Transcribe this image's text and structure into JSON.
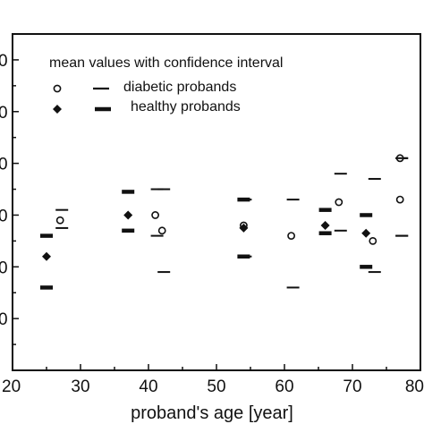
{
  "chart_data": {
    "type": "scatter",
    "xlabel": "proband's age [year]",
    "ylabel": "",
    "xlim": [
      20,
      80
    ],
    "ylim": [
      0,
      65
    ],
    "x_ticks": [
      "20",
      "30",
      "40",
      "50",
      "60",
      "70",
      "80"
    ],
    "y_tick_fragments": [
      "0",
      "0",
      "0",
      "0",
      "0",
      "0",
      "0"
    ],
    "legend": {
      "title": "mean values with confidence interval",
      "entries": [
        {
          "label": "diabetic probands",
          "marker": "open-circle",
          "interval": "thin-dash"
        },
        {
          "label": "healthy probands",
          "marker": "filled-diamond",
          "interval": "thick-dash"
        }
      ],
      "placement": "top-left"
    },
    "series": [
      {
        "name": "diabetic probands",
        "marker": "open-circle",
        "points": [
          {
            "x": 27,
            "y": 29,
            "lo": 27.5,
            "hi": 31
          },
          {
            "x": 41,
            "y": 30,
            "lo": 26,
            "hi": 35
          },
          {
            "x": 42,
            "y": 27,
            "lo": 19,
            "hi": 35
          },
          {
            "x": 54,
            "y": 28,
            "lo": 22,
            "hi": 33
          },
          {
            "x": 61,
            "y": 26,
            "lo": 16,
            "hi": 33
          },
          {
            "x": 68,
            "y": 32.5,
            "lo": 27,
            "hi": 38
          },
          {
            "x": 73,
            "y": 25,
            "lo": 19,
            "hi": 37
          },
          {
            "x": 77,
            "y": 41,
            "lo": 26,
            "hi": 41
          },
          {
            "x": 77,
            "y": 33,
            "lo": 26,
            "hi": 41
          }
        ]
      },
      {
        "name": "healthy probands",
        "marker": "filled-diamond",
        "points": [
          {
            "x": 25,
            "y": 22,
            "lo": 16,
            "hi": 26
          },
          {
            "x": 37,
            "y": 30,
            "lo": 27,
            "hi": 34.5
          },
          {
            "x": 54,
            "y": 27.5,
            "lo": 22,
            "hi": 33
          },
          {
            "x": 66,
            "y": 28,
            "lo": 26.5,
            "hi": 31
          },
          {
            "x": 72,
            "y": 26.5,
            "lo": 20,
            "hi": 30
          }
        ]
      }
    ]
  }
}
